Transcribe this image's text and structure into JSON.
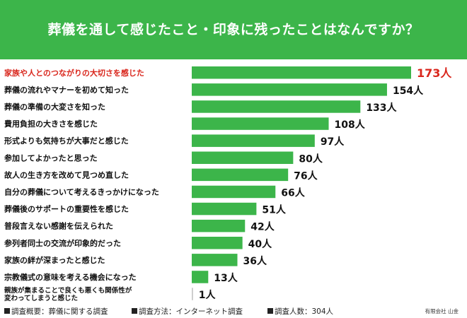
{
  "colors": {
    "bar": "#3cb54a",
    "header": "#3cb54a",
    "highlight": "#d9261c",
    "text": "#111111"
  },
  "chart_data": {
    "type": "bar",
    "orientation": "horizontal",
    "title": "葬儀を通して感じたこと・印象に残ったことはなんですか？",
    "unit": "人",
    "highlight_index": 0,
    "xlim": [
      0,
      173
    ],
    "grid": false,
    "categories": [
      [
        "家族や人とのつながりの大切さを感じた"
      ],
      [
        "葬儀の流れやマナーを初めて知った"
      ],
      [
        "葬儀の準備の大変さを知った"
      ],
      [
        "費用負担の大きさを感じた"
      ],
      [
        "形式よりも気持ちが大事だと感じた"
      ],
      [
        "参加してよかったと思った"
      ],
      [
        "故人の生き方を改めて見つめ直した"
      ],
      [
        "自分の葬儀について考えるきっかけになった"
      ],
      [
        "葬儀後のサポートの重要性を感じた"
      ],
      [
        "普段言えない感謝を伝えられた"
      ],
      [
        "参列者同士の交流が印象的だった"
      ],
      [
        "家族の絆が深まったと感じた"
      ],
      [
        "宗教儀式の意味を考える機会になった"
      ],
      [
        "親族が集まることで良くも悪くも関係性が",
        "変わってしまうと感じた"
      ]
    ],
    "values": [
      173,
      154,
      133,
      108,
      97,
      80,
      76,
      66,
      51,
      42,
      40,
      36,
      13,
      1
    ],
    "value_labels": [
      "173人",
      "154人",
      "133人",
      "108人",
      "97人",
      "80人",
      "76人",
      "66人",
      "51人",
      "42人",
      "40人",
      "36人",
      "13人",
      "1人"
    ]
  },
  "footer": {
    "survey_overview": "調査概要：葬儀に関する調査",
    "survey_method": "調査方法：インターネット調査",
    "respondents": "調査人数：304人",
    "credit": "有限会社 山金"
  }
}
